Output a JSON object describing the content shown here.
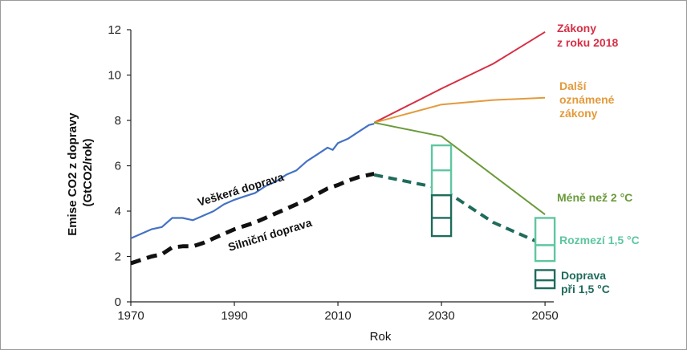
{
  "chart_data": {
    "type": "line",
    "xlabel": "Rok",
    "ylabel_lines": [
      "Emise CO2 z dopravy",
      "(GtCO2/rok)"
    ],
    "xlim": [
      1970,
      2052
    ],
    "ylim": [
      0,
      12
    ],
    "x_ticks": [
      1970,
      1990,
      2010,
      2030,
      2050
    ],
    "y_ticks": [
      0,
      2,
      4,
      6,
      8,
      10,
      12
    ],
    "grid": false,
    "colors": {
      "all_transport": "#4472c4",
      "road_transport": "#111111",
      "laws_2018": "#d62f45",
      "announced": "#e39a3b",
      "below_2c": "#6a9a3a",
      "range_15": "#5ec6a0",
      "transport_15": "#1f6b5c"
    },
    "series": [
      {
        "id": "all_transport",
        "name": "Veškerá doprava",
        "style": "solid",
        "points": [
          [
            1970,
            2.8
          ],
          [
            1972,
            3.0
          ],
          [
            1974,
            3.2
          ],
          [
            1976,
            3.3
          ],
          [
            1978,
            3.7
          ],
          [
            1980,
            3.7
          ],
          [
            1982,
            3.6
          ],
          [
            1984,
            3.8
          ],
          [
            1986,
            4.0
          ],
          [
            1988,
            4.3
          ],
          [
            1990,
            4.5
          ],
          [
            1992,
            4.65
          ],
          [
            1994,
            4.8
          ],
          [
            1996,
            5.1
          ],
          [
            1998,
            5.3
          ],
          [
            2000,
            5.6
          ],
          [
            2002,
            5.8
          ],
          [
            2004,
            6.2
          ],
          [
            2006,
            6.5
          ],
          [
            2008,
            6.8
          ],
          [
            2009,
            6.7
          ],
          [
            2010,
            7.0
          ],
          [
            2012,
            7.2
          ],
          [
            2014,
            7.5
          ],
          [
            2016,
            7.8
          ],
          [
            2017,
            7.85
          ]
        ]
      },
      {
        "id": "road_transport",
        "name": "Silniční doprava",
        "style": "dashed",
        "points": [
          [
            1970,
            1.7
          ],
          [
            1972,
            1.85
          ],
          [
            1974,
            2.0
          ],
          [
            1976,
            2.1
          ],
          [
            1978,
            2.4
          ],
          [
            1980,
            2.45
          ],
          [
            1982,
            2.45
          ],
          [
            1984,
            2.6
          ],
          [
            1986,
            2.8
          ],
          [
            1988,
            3.0
          ],
          [
            1990,
            3.2
          ],
          [
            1992,
            3.35
          ],
          [
            1994,
            3.5
          ],
          [
            1996,
            3.7
          ],
          [
            1998,
            3.9
          ],
          [
            2000,
            4.1
          ],
          [
            2002,
            4.3
          ],
          [
            2004,
            4.5
          ],
          [
            2006,
            4.75
          ],
          [
            2008,
            5.0
          ],
          [
            2010,
            5.15
          ],
          [
            2012,
            5.35
          ],
          [
            2014,
            5.5
          ],
          [
            2016,
            5.6
          ],
          [
            2017,
            5.65
          ]
        ]
      },
      {
        "id": "laws_2018",
        "name": "Zákony z roku 2018",
        "label_lines": [
          "Zákony",
          "z roku 2018"
        ],
        "style": "solid",
        "points": [
          [
            2017,
            7.9
          ],
          [
            2030,
            9.4
          ],
          [
            2040,
            10.5
          ],
          [
            2050,
            11.9
          ]
        ]
      },
      {
        "id": "announced",
        "name": "Další oznámené zákony",
        "label_lines": [
          "Další",
          "oznámené",
          "zákony"
        ],
        "style": "solid",
        "points": [
          [
            2017,
            7.9
          ],
          [
            2030,
            8.7
          ],
          [
            2040,
            8.9
          ],
          [
            2050,
            9.0
          ]
        ]
      },
      {
        "id": "below_2c",
        "name": "Méně než 2 °C",
        "style": "solid",
        "points": [
          [
            2017,
            7.9
          ],
          [
            2030,
            7.3
          ],
          [
            2050,
            3.85
          ]
        ]
      },
      {
        "id": "transport_15_path",
        "name": "",
        "style": "dashed",
        "points": [
          [
            2017,
            5.6
          ],
          [
            2030,
            5.0
          ],
          [
            2040,
            3.5
          ],
          [
            2050,
            2.5
          ]
        ]
      }
    ],
    "ranges": [
      {
        "id": "range_2030",
        "name": "Rozmezí 1,5 °C",
        "x": 2030,
        "y_low": 4.7,
        "y_high": 6.9,
        "y_mid": 5.8,
        "color_key": "range_15"
      },
      {
        "id": "range_2050",
        "name": "Rozmezí 1,5 °C",
        "x": 2050,
        "y_low": 1.8,
        "y_high": 3.7,
        "y_mid": 2.5,
        "color_key": "range_15"
      },
      {
        "id": "transport_2030",
        "name": "Doprava při 1,5 °C",
        "x": 2030,
        "y_low": 2.9,
        "y_high": 4.7,
        "y_mid": 3.7,
        "color_key": "transport_15"
      },
      {
        "id": "transport_2050",
        "name": "Doprava při 1,5 °C",
        "x": 2050,
        "y_low": 0.6,
        "y_high": 1.4,
        "y_mid": 0.95,
        "color_key": "transport_15"
      }
    ],
    "annotations": {
      "below_2c": "Méně než 2 °C",
      "range_15": "Rozmezí 1,5 °C",
      "transport_15_lines": [
        "Doprava",
        "při 1,5 °C"
      ],
      "all_transport": "Veškerá doprava",
      "road_transport": "Silniční doprava"
    }
  }
}
